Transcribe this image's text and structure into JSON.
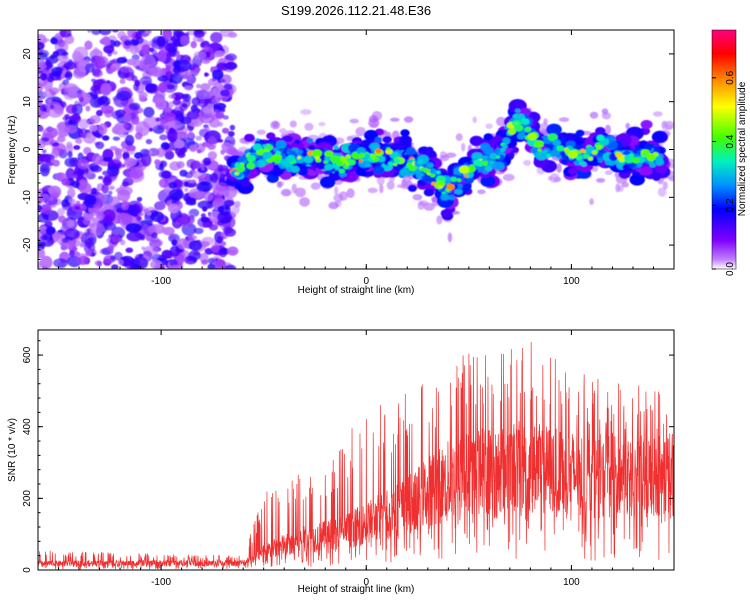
{
  "chart_data": [
    {
      "type": "heatmap",
      "title": "S199.2026.112.21.48.E36",
      "xlabel": "Height of straight line (km)",
      "ylabel": "Frequency (Hz)",
      "xlim": [
        -160,
        150
      ],
      "ylim": [
        -25,
        25
      ],
      "xticks": [
        -100,
        0,
        100
      ],
      "yticks": [
        -20,
        -10,
        0,
        10,
        20
      ],
      "colorbar": {
        "label": "Normalized spectral amplitude",
        "range": [
          0.0,
          0.75
        ],
        "ticks": [
          "0.0",
          "0.2",
          "0.4",
          "0.6"
        ],
        "colormap": [
          "#8000ff",
          "#0000ff",
          "#00a0ff",
          "#00ffa0",
          "#40ff00",
          "#ffff00",
          "#ff8000",
          "#ff0000",
          "#ff0080"
        ]
      },
      "noise_region_x": [
        -160,
        -65
      ],
      "signal_ridge": {
        "x": [
          -65,
          -58,
          -52,
          -45,
          -35,
          -25,
          -15,
          -5,
          5,
          15,
          25,
          35,
          40,
          45,
          55,
          65,
          70,
          75,
          85,
          95,
          105,
          115,
          125,
          135,
          145
        ],
        "y_hz": [
          -5,
          -3,
          0,
          -1,
          -2,
          -1,
          -3,
          -2,
          -1,
          -2,
          -3,
          -6,
          -9,
          -6,
          -3,
          -1,
          3,
          6,
          0,
          0,
          -2,
          1,
          -2,
          -1,
          -2
        ]
      }
    },
    {
      "type": "line",
      "title": "",
      "xlabel": "Height of straight line (km)",
      "ylabel": "SNR (10 * v/v)",
      "xlim": [
        -160,
        150
      ],
      "ylim": [
        0,
        670
      ],
      "xticks": [
        -100,
        0,
        100
      ],
      "yticks": [
        0,
        200,
        400,
        600
      ],
      "series": [
        {
          "name": "SNR",
          "color": "#f03030",
          "envelope_x": [
            -160,
            -60,
            -50,
            -40,
            -30,
            -20,
            -10,
            0,
            10,
            20,
            30,
            40,
            50,
            60,
            70,
            80,
            90,
            100,
            110,
            120,
            130,
            140,
            150
          ],
          "envelope_mean": [
            18,
            20,
            50,
            70,
            85,
            95,
            110,
            130,
            160,
            180,
            220,
            250,
            270,
            280,
            290,
            285,
            280,
            270,
            260,
            265,
            260,
            265,
            270
          ],
          "envelope_max": [
            55,
            40,
            220,
            240,
            280,
            300,
            380,
            450,
            480,
            500,
            530,
            600,
            640,
            650,
            620,
            650,
            600,
            560,
            540,
            530,
            520,
            520,
            480
          ]
        }
      ]
    }
  ]
}
